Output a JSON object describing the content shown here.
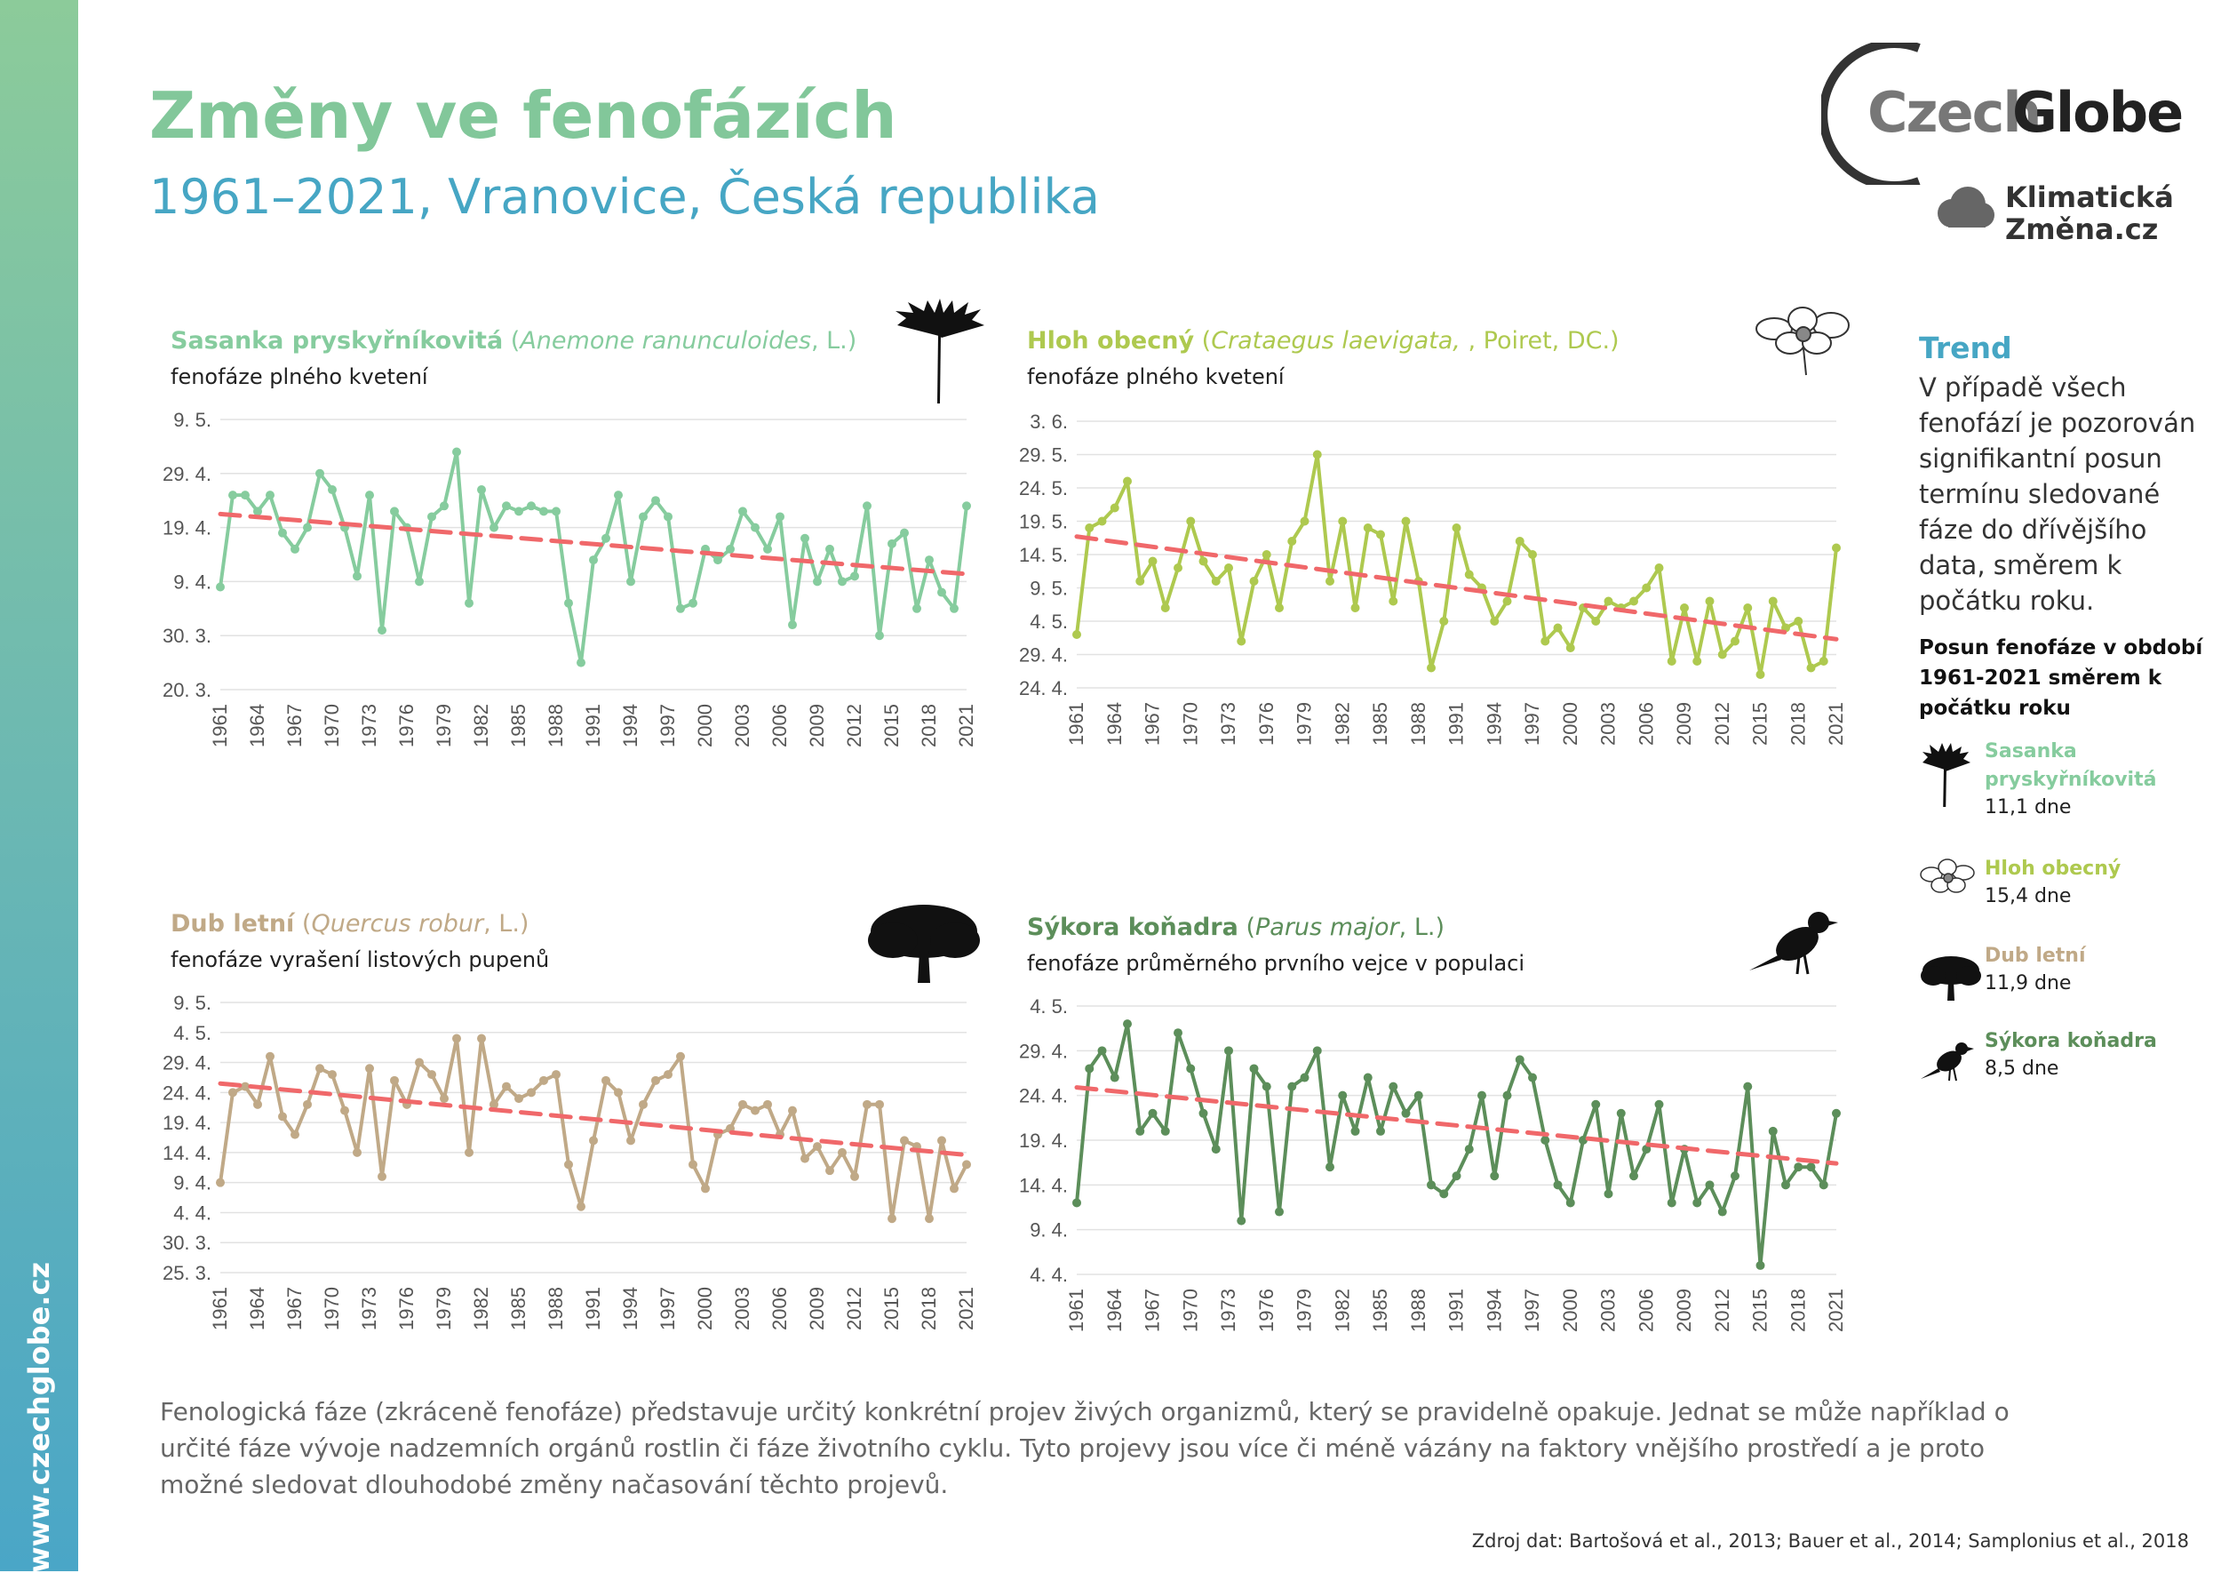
{
  "side_url": "www.czechglobe.cz",
  "title": "Změny ve fenofázích",
  "subtitle": "1961–2021, Vranovice, Česká republika",
  "logo": {
    "czech": "Czech",
    "globe": "Globe",
    "kz_line1": "Klimatická",
    "kz_line2": "Změna.cz"
  },
  "colors": {
    "anemone": "#86cc9e",
    "hawthorn": "#aec94f",
    "oak": "#c0a987",
    "tit": "#5c8e5a",
    "trend": "#f0686a",
    "blue": "#46a6c4"
  },
  "chart_data": [
    {
      "type": "line",
      "species": "Sasanka pryskyřníkovitá",
      "latin": "Anemone ranunculoides",
      "author": ", L.)",
      "phase": "fenofáze plného kvetení",
      "ylabels": [
        "9. 5.",
        "29. 4.",
        "19. 4.",
        "9. 4.",
        "30. 3.",
        "20. 3."
      ],
      "ylim": [
        80,
        130
      ],
      "yticks": [
        130,
        120,
        110,
        100,
        90,
        80
      ],
      "xticks": [
        "1961",
        "1964",
        "1967",
        "1970",
        "1973",
        "1976",
        "1979",
        "1982",
        "1985",
        "1988",
        "1991",
        "1994",
        "1997",
        "2000",
        "2003",
        "2006",
        "2009",
        "2012",
        "2015",
        "2018",
        "2021"
      ],
      "years": [
        1961,
        2021
      ],
      "values": [
        99,
        116,
        116,
        113,
        116,
        109,
        106,
        110,
        120,
        117,
        110,
        101,
        116,
        91,
        113,
        110,
        100,
        112,
        114,
        124,
        96,
        117,
        110,
        114,
        113,
        114,
        113,
        113,
        96,
        85,
        104,
        108,
        116,
        100,
        112,
        115,
        112,
        95,
        96,
        106,
        104,
        106,
        113,
        110,
        106,
        112,
        92,
        108,
        100,
        106,
        100,
        101,
        114,
        90,
        107,
        109,
        95,
        104,
        98,
        95,
        114
      ],
      "trend": [
        112.5,
        101.4
      ],
      "series_name": "Sasanka pryskyřníkovitá"
    },
    {
      "type": "line",
      "species": "Hloh obecný",
      "latin": "Crataegus laevigata, ",
      "author": ", Poiret, DC.)",
      "phase": "fenofáze plného kvetení",
      "ylabels": [
        "3. 6.",
        "29. 5.",
        "24. 5.",
        "19. 5.",
        "14. 5.",
        "9. 5.",
        "4. 5.",
        "29. 4.",
        "24. 4."
      ],
      "ylim": [
        114,
        154
      ],
      "yticks": [
        154,
        149,
        144,
        139,
        134,
        129,
        124,
        119,
        114
      ],
      "xticks": [
        "1961",
        "1964",
        "1967",
        "1970",
        "1973",
        "1976",
        "1979",
        "1982",
        "1985",
        "1988",
        "1991",
        "1994",
        "1997",
        "2000",
        "2003",
        "2006",
        "2009",
        "2012",
        "2015",
        "2018",
        "2021"
      ],
      "years": [
        1961,
        2021
      ],
      "values": [
        122,
        138,
        139,
        141,
        145,
        130,
        133,
        126,
        132,
        139,
        133,
        130,
        132,
        121,
        130,
        134,
        126,
        136,
        139,
        149,
        130,
        139,
        126,
        138,
        137,
        127,
        139,
        130,
        117,
        124,
        138,
        131,
        129,
        124,
        127,
        136,
        134,
        121,
        123,
        120,
        126,
        124,
        127,
        126,
        127,
        129,
        132,
        118,
        126,
        118,
        127,
        119,
        121,
        126,
        116,
        127,
        123,
        124,
        117,
        118,
        135
      ],
      "trend": [
        136.7,
        121.3
      ],
      "series_name": "Hloh obecný"
    },
    {
      "type": "line",
      "species": "Dub letní",
      "latin": "Quercus robur",
      "author": ", L.)",
      "phase": "fenofáze vyrašení listových pupenů",
      "ylabels": [
        "9. 5.",
        "4. 5.",
        "29. 4.",
        "24. 4.",
        "19. 4.",
        "14. 4.",
        "9. 4.",
        "4. 4.",
        "30. 3.",
        "25. 3."
      ],
      "ylim": [
        84,
        129
      ],
      "yticks": [
        129,
        124,
        119,
        114,
        109,
        104,
        99,
        94,
        89,
        84
      ],
      "xticks": [
        "1961",
        "1964",
        "1967",
        "1970",
        "1973",
        "1976",
        "1979",
        "1982",
        "1985",
        "1988",
        "1991",
        "1994",
        "1997",
        "2000",
        "2003",
        "2006",
        "2009",
        "2012",
        "2015",
        "2018",
        "2021"
      ],
      "years": [
        1961,
        2021
      ],
      "values": [
        99,
        114,
        115,
        112,
        120,
        110,
        107,
        112,
        118,
        117,
        111,
        104,
        118,
        100,
        116,
        112,
        119,
        117,
        113,
        123,
        104,
        123,
        112,
        115,
        113,
        114,
        116,
        117,
        102,
        95,
        106,
        116,
        114,
        106,
        112,
        116,
        117,
        120,
        102,
        98,
        107,
        108,
        112,
        111,
        112,
        107,
        111,
        103,
        105,
        101,
        104,
        100,
        112,
        112,
        93,
        106,
        105,
        93,
        106,
        98,
        102
      ],
      "trend": [
        115.5,
        103.6
      ],
      "series_name": "Dub letní"
    },
    {
      "type": "line",
      "species": "Sýkora koňadra",
      "latin": "Parus major",
      "author": ", L.)",
      "phase": "fenofáze průměrného prvního vejce v populaci",
      "ylabels": [
        "4. 5.",
        "29. 4.",
        "24. 4.",
        "19. 4.",
        "14. 4.",
        "9. 4.",
        "4. 4."
      ],
      "ylim": [
        94,
        124
      ],
      "yticks": [
        124,
        119,
        114,
        109,
        104,
        99,
        94
      ],
      "xticks": [
        "1961",
        "1964",
        "1967",
        "1970",
        "1973",
        "1976",
        "1979",
        "1982",
        "1985",
        "1988",
        "1991",
        "1994",
        "1997",
        "2000",
        "2003",
        "2006",
        "2009",
        "2012",
        "2015",
        "2018",
        "2021"
      ],
      "years": [
        1961,
        2021
      ],
      "values": [
        102,
        117,
        119,
        116,
        122,
        110,
        112,
        110,
        121,
        117,
        112,
        108,
        119,
        100,
        117,
        115,
        101,
        115,
        116,
        119,
        106,
        114,
        110,
        116,
        110,
        115,
        112,
        114,
        104,
        103,
        105,
        108,
        114,
        105,
        114,
        118,
        116,
        109,
        104,
        102,
        109,
        113,
        103,
        112,
        105,
        108,
        113,
        102,
        108,
        102,
        104,
        101,
        105,
        115,
        95,
        110,
        104,
        106,
        106,
        104,
        112
      ],
      "trend": [
        114.9,
        106.4
      ],
      "series_name": "Sýkora koňadra"
    }
  ],
  "trend_box": {
    "heading": "Trend",
    "text": "V případě všech fenofází je pozorován signifikantní posun termínu sledované fáze do dřívějšího data, směrem k počátku roku.",
    "shift_heading": "Posun fenofáze v období 1961-2021 směrem k počátku roku",
    "items": [
      {
        "name": "Sasanka pryskyřníkovitá",
        "value": "11,1 dne",
        "icon": "anemone-icon"
      },
      {
        "name": "Hloh obecný",
        "value": "15,4 dne",
        "icon": "hawthorn-icon"
      },
      {
        "name": "Dub letní",
        "value": "11,9 dne",
        "icon": "oak-icon"
      },
      {
        "name": "Sýkora koňadra",
        "value": "8,5 dne",
        "icon": "bird-icon"
      }
    ]
  },
  "footer_text": "Fenologická fáze (zkráceně fenofáze) představuje určitý konkrétní projev živých organizmů, který se pravidelně opakuje. Jednat se může například o určité fáze vývoje nadzemních orgánů rostlin či fáze životního cyklu. Tyto projevy jsou více či méně vázány na faktory vnějšího prostředí a je proto možné sledovat dlouhodobé změny načasování těchto projevů.",
  "source": "Zdroj dat: Bartošová et al., 2013; Bauer et al., 2014; Samplonius et al., 2018"
}
